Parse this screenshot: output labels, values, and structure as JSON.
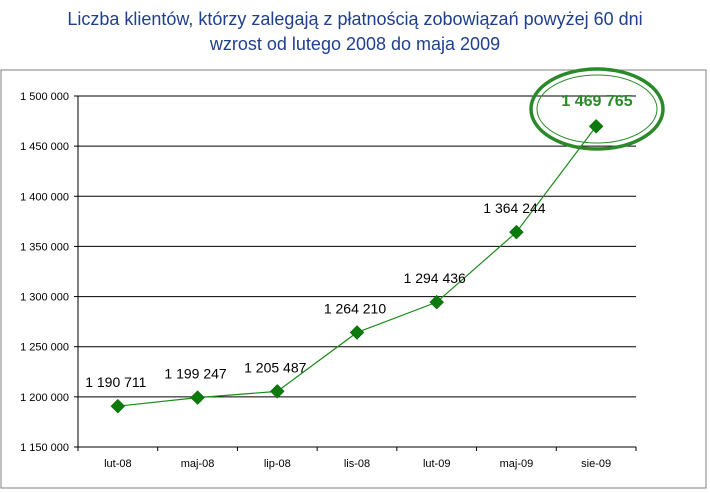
{
  "chart_data": {
    "type": "line",
    "title": "Liczba klientów, którzy zalegają z płatnością zobowiązań powyżej 60 dni",
    "subtitle": "wzrost od lutego 2008 do maja 2009",
    "categories": [
      "lut-08",
      "maj-08",
      "lip-08",
      "lis-08",
      "lut-09",
      "maj-09",
      "sie-09"
    ],
    "values": [
      1190711,
      1199247,
      1205487,
      1264210,
      1294436,
      1364244,
      1469765
    ],
    "data_labels": [
      "1 190 711",
      "1 199 247",
      "1 205 487",
      "1 264 210",
      "1 294 436",
      "1 364 244",
      "1 469 765"
    ],
    "y_ticks": [
      1150000,
      1200000,
      1250000,
      1300000,
      1350000,
      1400000,
      1450000,
      1500000
    ],
    "y_tick_labels": [
      "1 150 000",
      "1 200 000",
      "1 250 000",
      "1 300 000",
      "1 350 000",
      "1 400 000",
      "1 450 000",
      "1 500 000"
    ],
    "ylim": [
      1150000,
      1500000
    ],
    "grid": "horizontal",
    "highlight_index": 6,
    "colors": {
      "series": "#1a8a1a",
      "marker": "#0a7a0a",
      "highlight": "#2a8a2a",
      "title": "#1f3f8f",
      "grid": "#000000"
    }
  }
}
